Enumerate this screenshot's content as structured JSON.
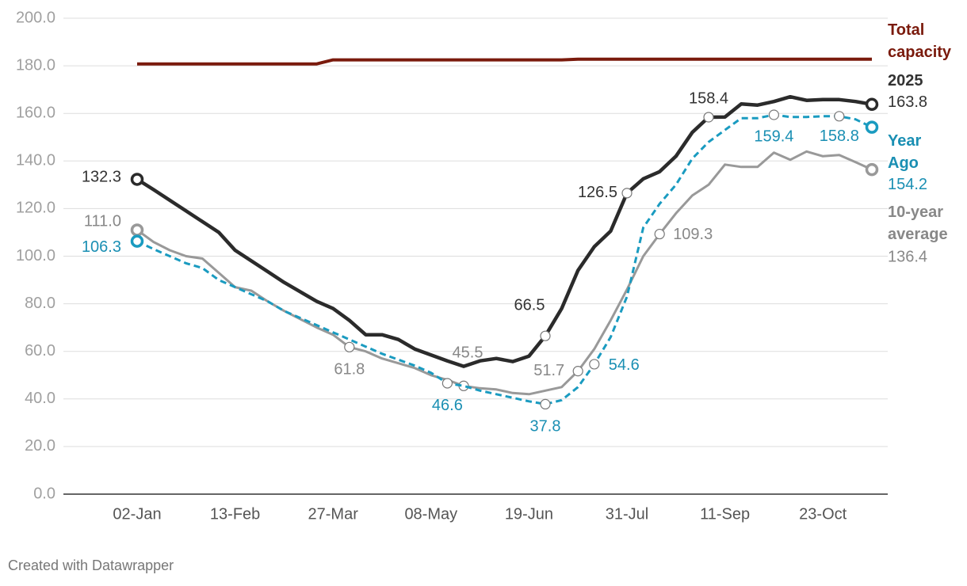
{
  "chart_data": {
    "type": "line",
    "categories": [
      "02-Jan",
      null,
      null,
      null,
      null,
      null,
      "13-Feb",
      null,
      null,
      null,
      null,
      null,
      "27-Mar",
      null,
      null,
      null,
      null,
      null,
      "08-May",
      null,
      null,
      null,
      null,
      null,
      "19-Jun",
      null,
      null,
      null,
      null,
      null,
      "31-Jul",
      null,
      null,
      null,
      null,
      null,
      "11-Sep",
      null,
      null,
      null,
      null,
      null,
      "23-Oct",
      null,
      null,
      null
    ],
    "ylim": [
      0,
      200
    ],
    "yticks": [
      {
        "value": 0,
        "label": "0.0"
      },
      {
        "value": 20,
        "label": "20.0"
      },
      {
        "value": 40,
        "label": "40.0"
      },
      {
        "value": 60,
        "label": "60.0"
      },
      {
        "value": 80,
        "label": "80.0"
      },
      {
        "value": 100,
        "label": "100.0"
      },
      {
        "value": 120,
        "label": "120.0"
      },
      {
        "value": 140,
        "label": "140.0"
      },
      {
        "value": 160,
        "label": "160.0"
      },
      {
        "value": 180,
        "label": "180.0"
      },
      {
        "value": 200,
        "label": "200.0"
      }
    ],
    "grid": true,
    "series": [
      {
        "name": "2025",
        "color": "#2b2b2b",
        "values": [
          132.3,
          128,
          123.5,
          119,
          114.5,
          110,
          102.5,
          98,
          93.5,
          89,
          85,
          81,
          78,
          73,
          67,
          67,
          65,
          61,
          58.5,
          56,
          53.7,
          56,
          57,
          55.7,
          58,
          66.5,
          78,
          94,
          104,
          110.5,
          126.5,
          132.5,
          135.5,
          142,
          152,
          158.4,
          158.5,
          164,
          163.5,
          165,
          167,
          165.5,
          165.8,
          165.8,
          165,
          163.8
        ],
        "value_labels": [
          "132.3",
          null,
          null,
          null,
          null,
          null,
          null,
          null,
          null,
          null,
          null,
          null,
          null,
          null,
          null,
          null,
          null,
          null,
          null,
          null,
          null,
          null,
          null,
          null,
          null,
          "66.5",
          null,
          null,
          null,
          null,
          "126.5",
          null,
          null,
          null,
          null,
          "158.4",
          null,
          null,
          null,
          null,
          null,
          null,
          null,
          null,
          null,
          "163.8"
        ]
      },
      {
        "name": "Year Ago",
        "color": "#1a9bc0",
        "dashed": true,
        "values": [
          106.3,
          103,
          100,
          97,
          95,
          90,
          87,
          84,
          81,
          77,
          74,
          71,
          68,
          65,
          62,
          59,
          56.5,
          54,
          51,
          46.6,
          45.5,
          43.5,
          42,
          40.5,
          39,
          37.8,
          39.5,
          45,
          54.6,
          66,
          83,
          112,
          122,
          130,
          141,
          148,
          153,
          158,
          158,
          159.4,
          158.5,
          158.5,
          158.8,
          158.8,
          157.5,
          154.2
        ],
        "value_labels": [
          "106.3",
          null,
          null,
          null,
          null,
          null,
          null,
          null,
          null,
          null,
          null,
          null,
          null,
          null,
          null,
          null,
          null,
          null,
          null,
          "46.6",
          null,
          null,
          null,
          null,
          null,
          "37.8",
          null,
          null,
          "54.6",
          null,
          null,
          null,
          null,
          null,
          null,
          null,
          null,
          null,
          null,
          "159.4",
          null,
          null,
          null,
          "158.8",
          null,
          "154.2"
        ]
      },
      {
        "name": "10-year average",
        "color": "#999999",
        "values": [
          111,
          106,
          102.5,
          100,
          99,
          93,
          87,
          85.5,
          81,
          77,
          73.5,
          70,
          67,
          61.8,
          60,
          57,
          55,
          53,
          50,
          48,
          45.5,
          44.5,
          44,
          42.5,
          42,
          43.5,
          45,
          51.7,
          61,
          73,
          86,
          100,
          109.3,
          118,
          125.5,
          130,
          138.5,
          137.5,
          137.5,
          143.5,
          140.5,
          144,
          142,
          142.5,
          139.5,
          136.4
        ],
        "value_labels": [
          "111.0",
          null,
          null,
          null,
          null,
          null,
          null,
          null,
          null,
          null,
          null,
          null,
          null,
          "61.8",
          null,
          null,
          null,
          null,
          null,
          null,
          "45.5",
          null,
          null,
          null,
          null,
          null,
          null,
          "51.7",
          null,
          null,
          null,
          null,
          "109.3",
          null,
          null,
          null,
          null,
          null,
          null,
          null,
          null,
          null,
          null,
          null,
          null,
          "136.4"
        ]
      },
      {
        "name": "Total capacity",
        "color": "#7a1a0c",
        "values": [
          180.8,
          180.8,
          180.8,
          180.8,
          180.8,
          180.8,
          180.8,
          180.8,
          180.8,
          180.8,
          180.8,
          180.8,
          182.5,
          182.5,
          182.5,
          182.5,
          182.5,
          182.5,
          182.5,
          182.5,
          182.5,
          182.5,
          182.5,
          182.5,
          182.5,
          182.5,
          182.5,
          182.8,
          182.8,
          182.8,
          182.8,
          182.8,
          182.8,
          182.8,
          182.8,
          182.8,
          182.8,
          182.8,
          182.8,
          182.8,
          182.8,
          182.8,
          182.8,
          182.8,
          182.8,
          182.8
        ]
      }
    ],
    "footer": "Created with Datawrapper"
  }
}
